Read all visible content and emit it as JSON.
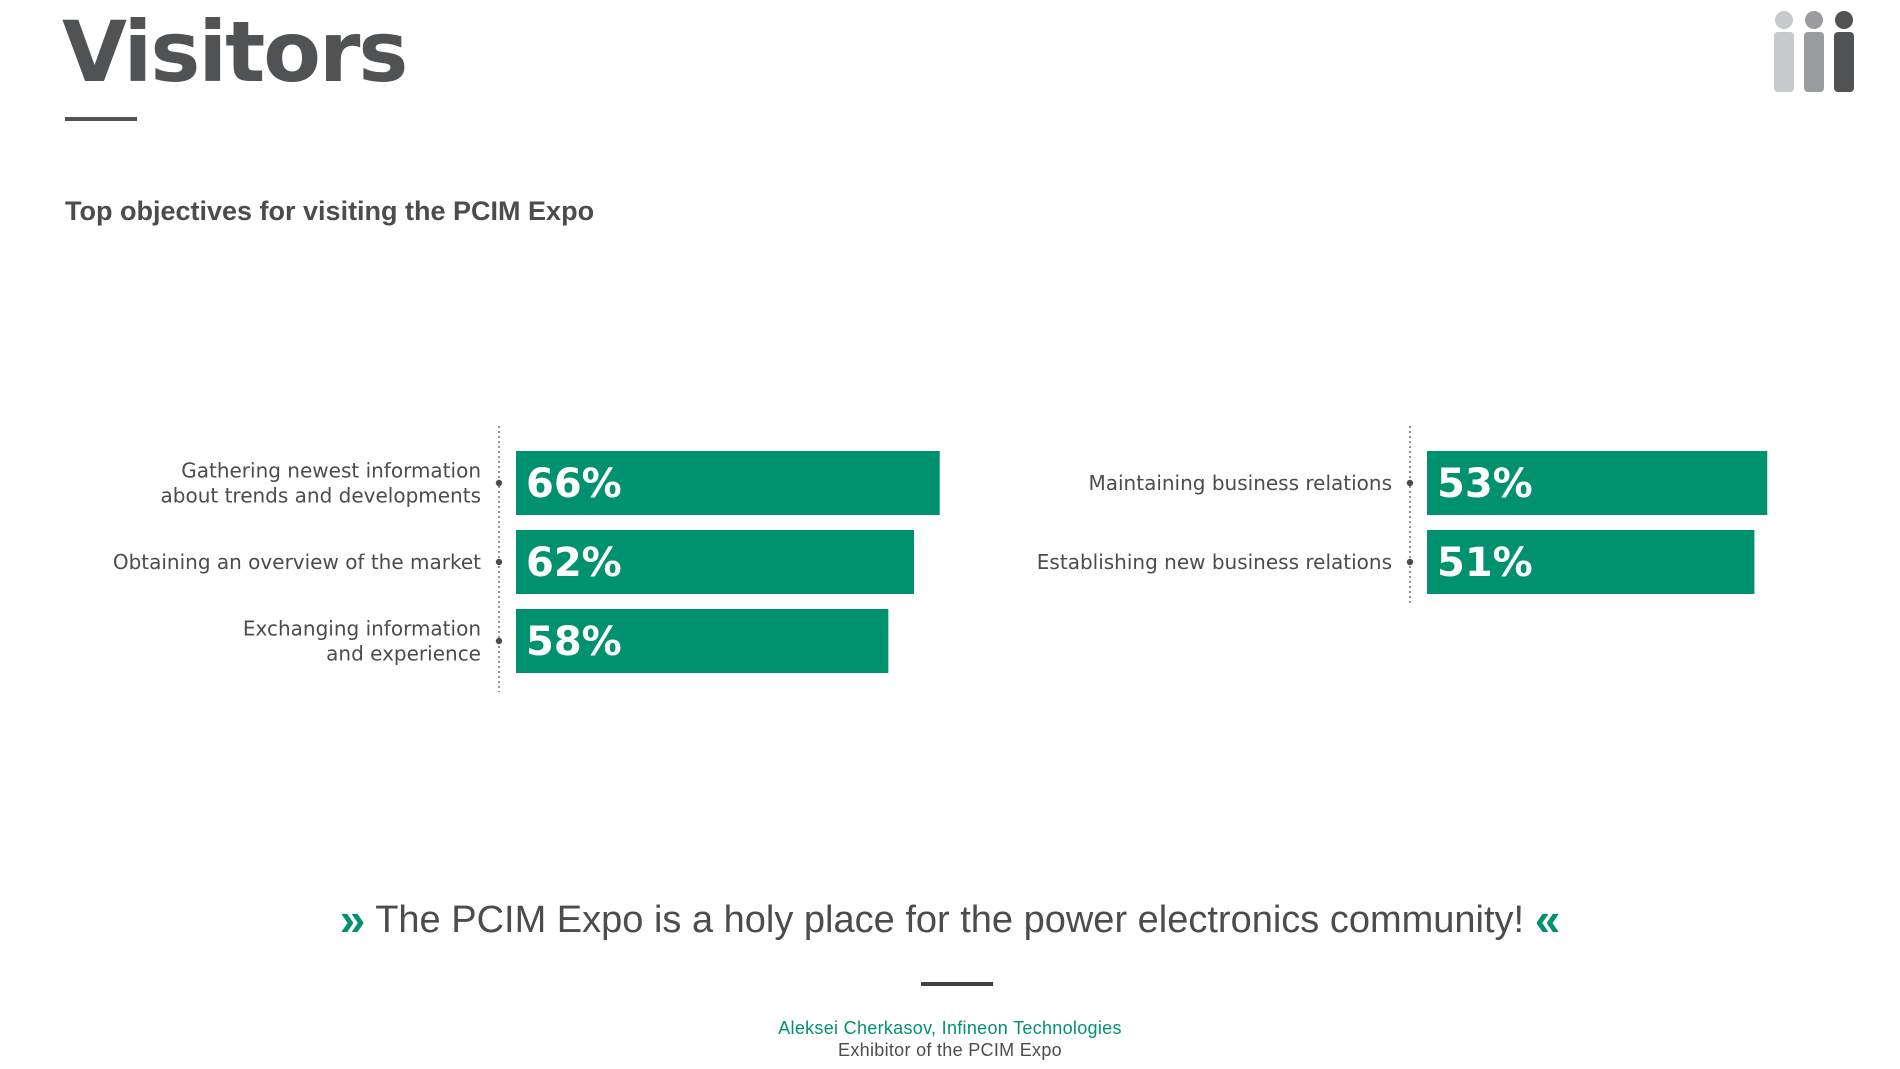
{
  "page": {
    "title": "Visitors",
    "subtitle": "Top objectives for visiting the PCIM Expo"
  },
  "icons": {
    "header": "people-group-icon",
    "quote_open": "double-chevron-right-icon",
    "quote_close": "double-chevron-left-icon"
  },
  "colors": {
    "bar": "#00926e",
    "text": "#4a4c4e",
    "accent": "#00926e"
  },
  "chart_data": [
    {
      "type": "bar",
      "orientation": "horizontal",
      "unit": "%",
      "categories": [
        [
          "Gathering newest information",
          "about trends and developments"
        ],
        [
          "Obtaining an overview of the market"
        ],
        [
          "Exchanging information",
          "and experience"
        ]
      ],
      "values": [
        66,
        62,
        58
      ],
      "value_labels": [
        "66%",
        "62%",
        "58%"
      ],
      "xlim": [
        0,
        100
      ]
    },
    {
      "type": "bar",
      "orientation": "horizontal",
      "unit": "%",
      "categories": [
        [
          "Maintaining business relations"
        ],
        [
          "Establishing new business relations"
        ]
      ],
      "values": [
        53,
        51
      ],
      "value_labels": [
        "53%",
        "51%"
      ],
      "xlim": [
        0,
        100
      ]
    }
  ],
  "quote": {
    "open_mark": "»",
    "text": "The PCIM Expo is a holy place for the power electronics community!",
    "close_mark": "«",
    "author": "Aleksei Cherkasov, Infineon Technologies",
    "role": "Exhibitor of the PCIM Expo"
  }
}
